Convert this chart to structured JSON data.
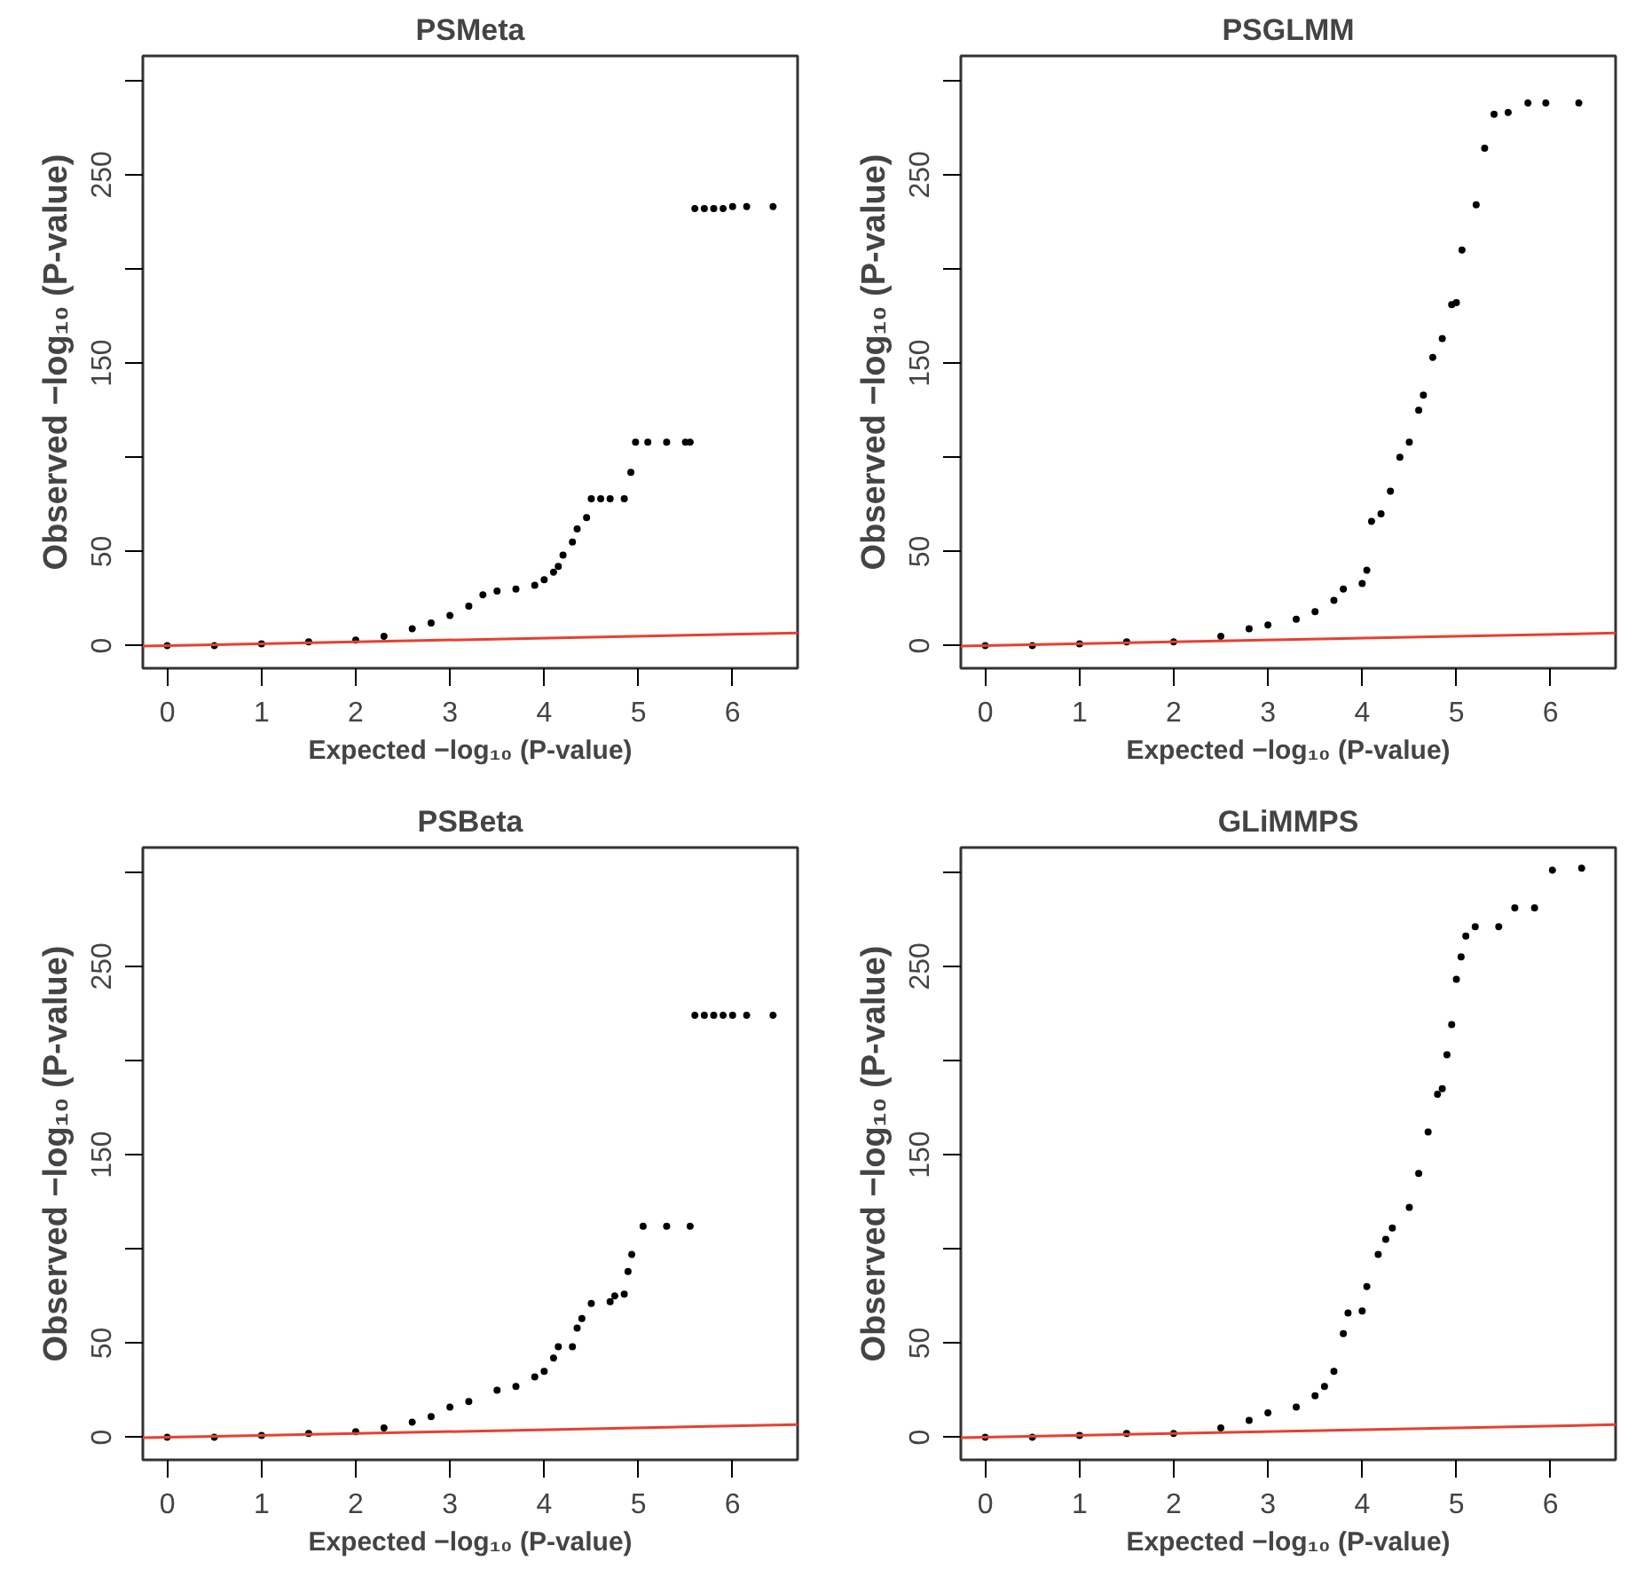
{
  "chart_data": [
    {
      "type": "scatter",
      "title": "PSMeta",
      "xlabel": "Expected −log₁₀ (P-value)",
      "ylabel": "Observed −log₁₀ (P-value)",
      "xlim": [
        -0.26,
        6.69
      ],
      "ylim": [
        -12,
        313
      ],
      "xticks": [
        0,
        1,
        2,
        3,
        4,
        5,
        6
      ],
      "yticks": [
        0,
        50,
        {
          "value": 100,
          "label": null
        },
        150,
        {
          "value": 200,
          "label": null
        },
        250,
        {
          "value": 300,
          "label": null
        }
      ],
      "marker": "circle",
      "series": [
        {
          "color": "#000000",
          "x": [
            0,
            0.5,
            1,
            1.5,
            2,
            2.3,
            2.6,
            2.8,
            3.0,
            3.2,
            3.35,
            3.5,
            3.7,
            3.9,
            4.0,
            4.1,
            4.15,
            4.2,
            4.3,
            4.35,
            4.45,
            4.5,
            4.6,
            4.7,
            4.85,
            4.92,
            4.97,
            5.1,
            5.3,
            5.5,
            5.55,
            5.6,
            5.7,
            5.8,
            5.9,
            6.0,
            6.15,
            6.43
          ],
          "values": [
            0,
            0,
            1,
            2,
            3,
            5,
            9,
            12,
            16,
            21,
            27,
            29,
            30,
            32,
            35,
            39,
            42,
            48,
            55,
            62,
            68,
            78,
            78,
            78,
            78,
            92,
            108,
            108,
            108,
            108,
            108,
            232,
            232,
            232,
            232,
            233,
            233,
            233
          ]
        },
        {
          "type": "line",
          "marker": "none",
          "color": "#e8402f",
          "x": [
            -0.26,
            6.69
          ],
          "values": [
            -0.26,
            6.69
          ]
        }
      ]
    },
    {
      "type": "scatter",
      "title": "PSGLMM",
      "xlabel": "Expected −log₁₀ (P-value)",
      "ylabel": "Observed −log₁₀ (P-value)",
      "xlim": [
        -0.26,
        6.69
      ],
      "ylim": [
        -12,
        313
      ],
      "xticks": [
        0,
        1,
        2,
        3,
        4,
        5,
        6
      ],
      "yticks": [
        0,
        50,
        {
          "value": 100,
          "label": null
        },
        150,
        {
          "value": 200,
          "label": null
        },
        250,
        {
          "value": 300,
          "label": null
        }
      ],
      "marker": "circle",
      "series": [
        {
          "color": "#000000",
          "x": [
            0,
            0.5,
            1,
            1.5,
            2,
            2.5,
            2.8,
            3.0,
            3.3,
            3.5,
            3.7,
            3.8,
            4.0,
            4.05,
            4.1,
            4.2,
            4.3,
            4.4,
            4.5,
            4.6,
            4.65,
            4.75,
            4.85,
            4.95,
            5.0,
            5.06,
            5.21,
            5.3,
            5.4,
            5.55,
            5.76,
            5.95,
            6.3
          ],
          "values": [
            0,
            0,
            1,
            2,
            2,
            5,
            9,
            11,
            14,
            18,
            24,
            30,
            33,
            40,
            66,
            70,
            82,
            100,
            108,
            125,
            133,
            153,
            163,
            181,
            182,
            210,
            234,
            264,
            282,
            283,
            288,
            288,
            288
          ]
        },
        {
          "type": "line",
          "marker": "none",
          "color": "#e8402f",
          "x": [
            -0.26,
            6.69
          ],
          "values": [
            -0.26,
            6.69
          ]
        }
      ]
    },
    {
      "type": "scatter",
      "title": "PSBeta",
      "xlabel": "Expected −log₁₀ (P-value)",
      "ylabel": "Observed −log₁₀ (P-value)",
      "xlim": [
        -0.26,
        6.69
      ],
      "ylim": [
        -12,
        313
      ],
      "xticks": [
        0,
        1,
        2,
        3,
        4,
        5,
        6
      ],
      "yticks": [
        0,
        50,
        {
          "value": 100,
          "label": null
        },
        150,
        {
          "value": 200,
          "label": null
        },
        250,
        {
          "value": 300,
          "label": null
        }
      ],
      "marker": "circle",
      "series": [
        {
          "color": "#000000",
          "x": [
            0,
            0.5,
            1,
            1.5,
            2,
            2.3,
            2.6,
            2.8,
            3.0,
            3.2,
            3.5,
            3.7,
            3.9,
            4.0,
            4.1,
            4.15,
            4.3,
            4.35,
            4.4,
            4.5,
            4.7,
            4.75,
            4.85,
            4.89,
            4.93,
            5.05,
            5.3,
            5.55,
            5.6,
            5.7,
            5.8,
            5.9,
            6.0,
            6.15,
            6.43
          ],
          "values": [
            0,
            0,
            1,
            2,
            3,
            5,
            8,
            11,
            16,
            19,
            25,
            27,
            32,
            35,
            42,
            48,
            48,
            58,
            63,
            71,
            72,
            75,
            76,
            88,
            97,
            112,
            112,
            112,
            224,
            224,
            224,
            224,
            224,
            224,
            224
          ]
        },
        {
          "type": "line",
          "marker": "none",
          "color": "#e8402f",
          "x": [
            -0.26,
            6.69
          ],
          "values": [
            -0.26,
            6.69
          ]
        }
      ]
    },
    {
      "type": "scatter",
      "title": "GLiMMPS",
      "xlabel": "Expected −log₁₀ (P-value)",
      "ylabel": "Observed −log₁₀ (P-value)",
      "xlim": [
        -0.26,
        6.69
      ],
      "ylim": [
        -12,
        313
      ],
      "xticks": [
        0,
        1,
        2,
        3,
        4,
        5,
        6
      ],
      "yticks": [
        0,
        50,
        {
          "value": 100,
          "label": null
        },
        150,
        {
          "value": 200,
          "label": null
        },
        250,
        {
          "value": 300,
          "label": null
        }
      ],
      "marker": "circle",
      "series": [
        {
          "color": "#000000",
          "x": [
            0,
            0.5,
            1,
            1.5,
            2,
            2.5,
            2.8,
            3.0,
            3.3,
            3.5,
            3.6,
            3.7,
            3.8,
            3.85,
            4.0,
            4.05,
            4.17,
            4.25,
            4.32,
            4.5,
            4.6,
            4.7,
            4.8,
            4.85,
            4.9,
            4.95,
            5.0,
            5.05,
            5.1,
            5.2,
            5.45,
            5.62,
            5.83,
            6.02,
            6.33
          ],
          "values": [
            0,
            0,
            1,
            2,
            2,
            5,
            9,
            13,
            16,
            22,
            27,
            35,
            55,
            66,
            67,
            80,
            97,
            105,
            111,
            122,
            140,
            162,
            182,
            185,
            203,
            219,
            243,
            255,
            266,
            271,
            271,
            281,
            281,
            301,
            302
          ]
        },
        {
          "type": "line",
          "marker": "none",
          "color": "#e8402f",
          "x": [
            -0.26,
            6.69
          ],
          "values": [
            -0.26,
            6.69
          ]
        }
      ]
    }
  ]
}
